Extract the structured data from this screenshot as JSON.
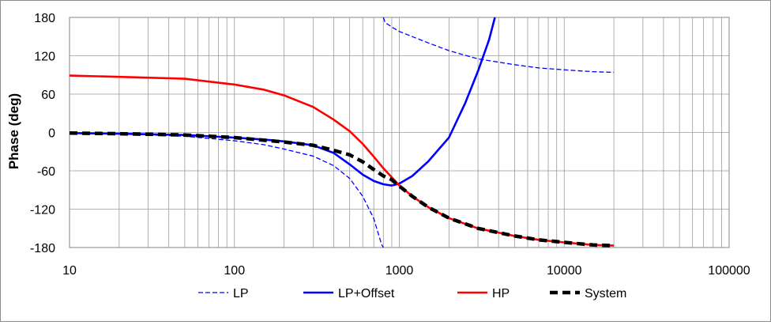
{
  "chart_data": {
    "type": "line",
    "ylabel": "Phase (deg)",
    "xscale": "log",
    "xlim": [
      10,
      100000
    ],
    "ylim": [
      -180,
      180
    ],
    "x_ticks": [
      "10",
      "100",
      "1000",
      "10000",
      "100000"
    ],
    "y_ticks": [
      "180",
      "120",
      "60",
      "0",
      "-60",
      "-120",
      "-180"
    ],
    "grid": true,
    "legend_position": "bottom",
    "series": [
      {
        "name": "LP",
        "color": "#0000FF",
        "style": "dashed-thin",
        "points": [
          [
            10,
            -1
          ],
          [
            20,
            -2
          ],
          [
            50,
            -6
          ],
          [
            100,
            -13
          ],
          [
            150,
            -19
          ],
          [
            200,
            -26
          ],
          [
            300,
            -37
          ],
          [
            400,
            -52
          ],
          [
            500,
            -72
          ],
          [
            600,
            -100
          ],
          [
            700,
            -135
          ],
          [
            780,
            -175
          ],
          [
            800,
            -180
          ],
          null,
          [
            800,
            180
          ],
          [
            820,
            172
          ],
          [
            900,
            165
          ],
          [
            1000,
            158
          ],
          [
            1200,
            150
          ],
          [
            1500,
            140
          ],
          [
            2000,
            128
          ],
          [
            3000,
            115
          ],
          [
            5000,
            106
          ],
          [
            7000,
            101
          ],
          [
            10000,
            98
          ],
          [
            15000,
            95
          ],
          [
            20000,
            94
          ]
        ]
      },
      {
        "name": "LP+Offset",
        "color": "#0000FF",
        "style": "solid",
        "points": [
          [
            10,
            -1
          ],
          [
            20,
            -2
          ],
          [
            50,
            -4
          ],
          [
            100,
            -8
          ],
          [
            150,
            -11
          ],
          [
            200,
            -14
          ],
          [
            300,
            -20
          ],
          [
            400,
            -32
          ],
          [
            500,
            -50
          ],
          [
            600,
            -66
          ],
          [
            700,
            -76
          ],
          [
            800,
            -81
          ],
          [
            900,
            -83
          ],
          [
            1000,
            -80
          ],
          [
            1200,
            -68
          ],
          [
            1500,
            -45
          ],
          [
            2000,
            -8
          ],
          [
            2500,
            45
          ],
          [
            3000,
            96
          ],
          [
            3500,
            145
          ],
          [
            3800,
            180
          ]
        ]
      },
      {
        "name": "HP",
        "color": "#FF0000",
        "style": "solid",
        "points": [
          [
            10,
            89
          ],
          [
            20,
            87
          ],
          [
            50,
            84
          ],
          [
            100,
            75
          ],
          [
            150,
            67
          ],
          [
            200,
            58
          ],
          [
            300,
            40
          ],
          [
            400,
            20
          ],
          [
            500,
            2
          ],
          [
            600,
            -18
          ],
          [
            700,
            -38
          ],
          [
            800,
            -56
          ],
          [
            900,
            -70
          ],
          [
            1000,
            -83
          ],
          [
            1200,
            -100
          ],
          [
            1500,
            -117
          ],
          [
            2000,
            -134
          ],
          [
            3000,
            -150
          ],
          [
            5000,
            -162
          ],
          [
            7000,
            -168
          ],
          [
            10000,
            -172
          ],
          [
            15000,
            -176
          ],
          [
            20000,
            -177
          ]
        ]
      },
      {
        "name": "System",
        "color": "#000000",
        "style": "dashed-thick",
        "points": [
          [
            10,
            -1
          ],
          [
            20,
            -2
          ],
          [
            50,
            -4
          ],
          [
            100,
            -8
          ],
          [
            150,
            -12
          ],
          [
            200,
            -15
          ],
          [
            300,
            -20
          ],
          [
            400,
            -28
          ],
          [
            500,
            -35
          ],
          [
            600,
            -46
          ],
          [
            700,
            -58
          ],
          [
            800,
            -68
          ],
          [
            900,
            -74
          ],
          [
            1000,
            -84
          ],
          [
            1200,
            -100
          ],
          [
            1500,
            -117
          ],
          [
            2000,
            -134
          ],
          [
            3000,
            -150
          ],
          [
            5000,
            -162
          ],
          [
            7000,
            -168
          ],
          [
            10000,
            -172
          ],
          [
            15000,
            -176
          ],
          [
            20000,
            -177
          ]
        ]
      }
    ]
  }
}
